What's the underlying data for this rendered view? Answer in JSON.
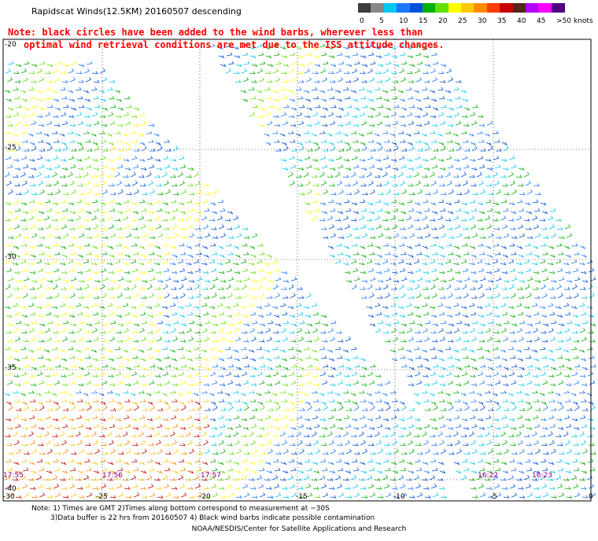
{
  "title": "Rapidscat Winds(12.5KM) 20160507 descending",
  "note_lines": [
    "Note: black circles have been added to the wind barbs, wherever less than",
    "optimal wind retrieval conditions are met due to the ISS attitude changes."
  ],
  "color_scale": {
    "colors": [
      "#3c3c3c",
      "#888888",
      "#00c8f0",
      "#1e78ff",
      "#0050dc",
      "#00b000",
      "#60e000",
      "#ffff00",
      "#ffc800",
      "#ff8c00",
      "#ff3c00",
      "#c80000",
      "#502814",
      "#b400ff",
      "#ff00ff",
      "#500082"
    ],
    "labels": [
      "0",
      "5",
      "10",
      "15",
      "20",
      "25",
      "30",
      "35",
      "40",
      "45",
      ">50"
    ],
    "unit": "knots"
  },
  "map": {
    "lat_labels": [
      "-20",
      "-25",
      "-30",
      "-35",
      "-40"
    ],
    "lon_labels": [
      "-30",
      "-25",
      "-20",
      "-15",
      "-10",
      "-5",
      "0"
    ],
    "time_labels": [
      "17:55",
      "17:56",
      "17:57",
      "16:22",
      "16:23"
    ]
  },
  "footer": {
    "line1": "Note: 1) Times are GMT 2)Times along bottom correspond to measurement at ~30S",
    "line2": "3)Data buffer is 22 hrs from 20160507 4) Black wind barbs indicate possible contamination",
    "credit": "NOAA/NESDIS/Center for Satellite Applications and Research"
  }
}
